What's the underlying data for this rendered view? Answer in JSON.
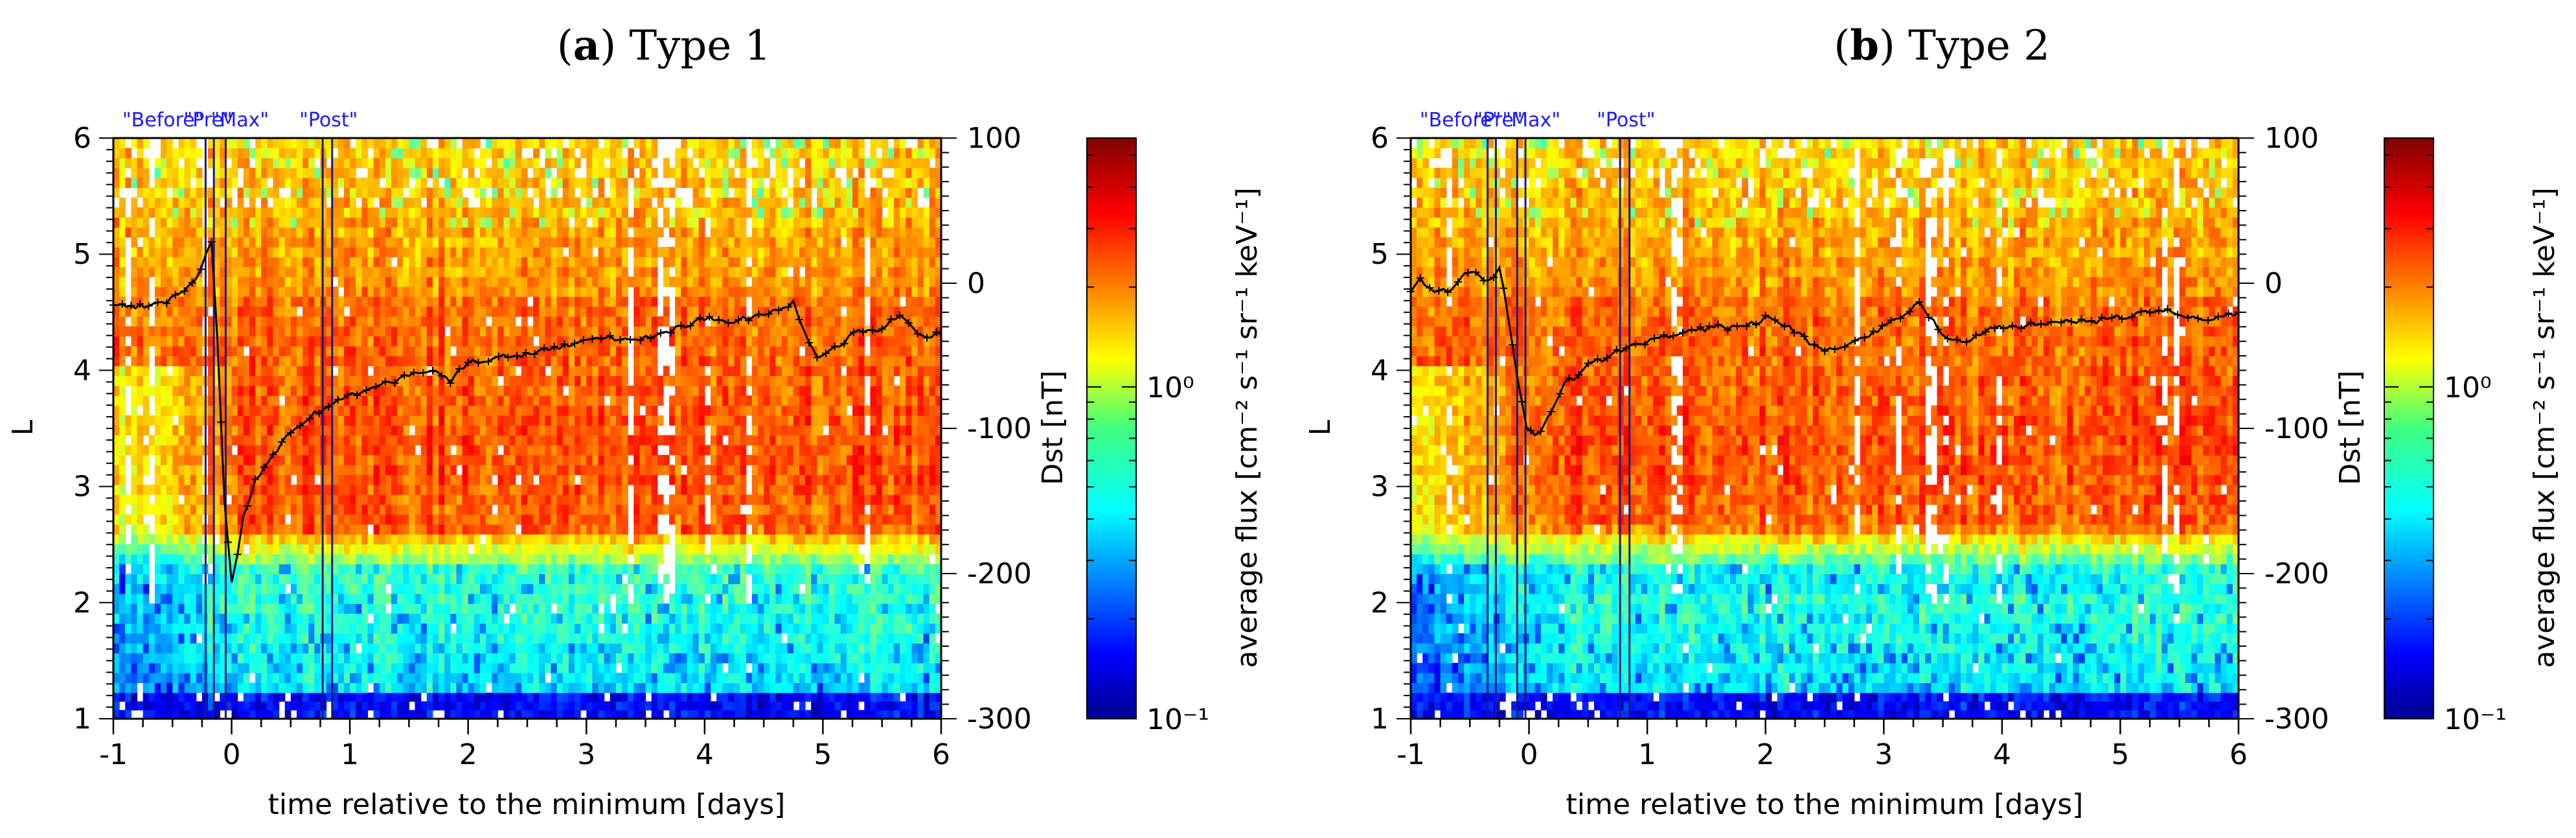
{
  "chart_data": [
    {
      "type": "heatmap",
      "panel_letter": "a",
      "title_rest": " Type 1",
      "xlabel": "time relative to the minimum [days]",
      "ylabel": "L",
      "y2label": "Dst [nT]",
      "colorbar_label": "average flux [cm⁻² s⁻¹ sr⁻¹ keV⁻¹]",
      "xlim": [
        -1,
        6
      ],
      "ylim": [
        1,
        6
      ],
      "y2lim": [
        -300,
        100
      ],
      "xticks": [
        -1,
        0,
        1,
        2,
        3,
        4,
        5,
        6
      ],
      "yticks": [
        1,
        2,
        3,
        4,
        5,
        6
      ],
      "y2ticks": [
        -300,
        -200,
        -100,
        0,
        100
      ],
      "cbar_ticks": [
        {
          "value": 0.1,
          "label": "10⁻¹"
        },
        {
          "value": 1,
          "label": "10⁰"
        }
      ],
      "cbar_range_log10": [
        -1,
        0.75
      ],
      "phase_labels": [
        {
          "x": -0.58,
          "label": "\"Before\""
        },
        {
          "x": -0.2,
          "label": "\"Pre\""
        },
        {
          "x": 0.07,
          "label": "\"Max\""
        },
        {
          "x": 0.82,
          "label": "\"Post\""
        }
      ],
      "phase_lines": [
        -1.0,
        -0.22,
        -0.15,
        -0.05,
        0.77,
        0.85
      ],
      "dst_series": [
        [
          -1.0,
          -14
        ],
        [
          -0.85,
          -16
        ],
        [
          -0.7,
          -15
        ],
        [
          -0.55,
          -12
        ],
        [
          -0.4,
          -6
        ],
        [
          -0.3,
          3
        ],
        [
          -0.22,
          18
        ],
        [
          -0.17,
          30
        ],
        [
          -0.12,
          -40
        ],
        [
          -0.06,
          -150
        ],
        [
          0.0,
          -205
        ],
        [
          0.05,
          -185
        ],
        [
          0.1,
          -160
        ],
        [
          0.2,
          -137
        ],
        [
          0.35,
          -118
        ],
        [
          0.5,
          -103
        ],
        [
          0.7,
          -90
        ],
        [
          0.9,
          -82
        ],
        [
          1.1,
          -74
        ],
        [
          1.3,
          -69
        ],
        [
          1.5,
          -64
        ],
        [
          1.7,
          -60
        ],
        [
          1.85,
          -67
        ],
        [
          2.0,
          -55
        ],
        [
          2.3,
          -51
        ],
        [
          2.6,
          -47
        ],
        [
          2.9,
          -42
        ],
        [
          3.2,
          -38
        ],
        [
          3.5,
          -38
        ],
        [
          3.8,
          -30
        ],
        [
          4.0,
          -24
        ],
        [
          4.2,
          -27
        ],
        [
          4.5,
          -22
        ],
        [
          4.75,
          -14
        ],
        [
          4.85,
          -34
        ],
        [
          4.95,
          -53
        ],
        [
          5.1,
          -45
        ],
        [
          5.3,
          -33
        ],
        [
          5.5,
          -31
        ],
        [
          5.65,
          -22
        ],
        [
          5.8,
          -36
        ],
        [
          6.0,
          -35
        ]
      ]
    },
    {
      "type": "heatmap",
      "panel_letter": "b",
      "title_rest": " Type 2",
      "xlabel": "time relative to the minimum [days]",
      "ylabel": "L",
      "y2label": "Dst [nT]",
      "colorbar_label": "average flux [cm⁻² s⁻¹ sr⁻¹ keV⁻¹]",
      "xlim": [
        -1,
        6
      ],
      "ylim": [
        1,
        6
      ],
      "y2lim": [
        -300,
        100
      ],
      "xticks": [
        -1,
        0,
        1,
        2,
        3,
        4,
        5,
        6
      ],
      "yticks": [
        1,
        2,
        3,
        4,
        5,
        6
      ],
      "y2ticks": [
        -300,
        -200,
        -100,
        0,
        100
      ],
      "cbar_ticks": [
        {
          "value": 0.1,
          "label": "10⁻¹"
        },
        {
          "value": 1,
          "label": "10⁰"
        }
      ],
      "cbar_range_log10": [
        -1,
        0.75
      ],
      "phase_labels": [
        {
          "x": -0.58,
          "label": "\"Before\""
        },
        {
          "x": -0.26,
          "label": "\"Pre\""
        },
        {
          "x": 0.02,
          "label": "\"Max\""
        },
        {
          "x": 0.82,
          "label": "\"Post\""
        }
      ],
      "phase_lines": [
        -1.0,
        -0.35,
        -0.28,
        -0.1,
        -0.03,
        0.77,
        0.85
      ],
      "dst_series": [
        [
          -1.0,
          -5
        ],
        [
          -0.92,
          2
        ],
        [
          -0.8,
          -7
        ],
        [
          -0.65,
          -4
        ],
        [
          -0.55,
          8
        ],
        [
          -0.45,
          6
        ],
        [
          -0.35,
          0
        ],
        [
          -0.25,
          10
        ],
        [
          -0.18,
          -20
        ],
        [
          -0.1,
          -65
        ],
        [
          -0.02,
          -100
        ],
        [
          0.05,
          -106
        ],
        [
          0.15,
          -94
        ],
        [
          0.3,
          -70
        ],
        [
          0.5,
          -57
        ],
        [
          0.7,
          -49
        ],
        [
          0.9,
          -42
        ],
        [
          1.1,
          -38
        ],
        [
          1.3,
          -34
        ],
        [
          1.6,
          -30
        ],
        [
          1.8,
          -31
        ],
        [
          2.0,
          -24
        ],
        [
          2.2,
          -30
        ],
        [
          2.5,
          -48
        ],
        [
          2.8,
          -38
        ],
        [
          3.1,
          -26
        ],
        [
          3.3,
          -13
        ],
        [
          3.5,
          -36
        ],
        [
          3.7,
          -40
        ],
        [
          3.9,
          -31
        ],
        [
          4.2,
          -29
        ],
        [
          4.5,
          -26
        ],
        [
          4.8,
          -26
        ],
        [
          5.1,
          -22
        ],
        [
          5.4,
          -19
        ],
        [
          5.7,
          -25
        ],
        [
          6.0,
          -20
        ]
      ]
    }
  ]
}
